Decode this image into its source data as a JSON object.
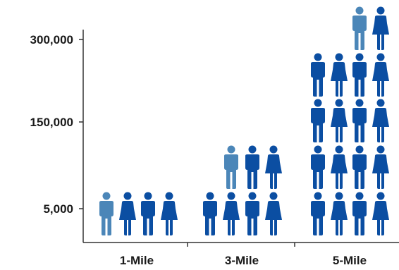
{
  "chart_data": {
    "type": "pictograph",
    "title": "",
    "xlabel": "",
    "ylabel": "",
    "categories": [
      "1-Mile",
      "3-Mile",
      "5-Mile"
    ],
    "y_tick_labels": [
      "300,000",
      "150,000",
      "5,000"
    ],
    "series": [
      {
        "values": [
          [
            1,
            3
          ],
          [
            1,
            6
          ],
          [
            1,
            4,
            4,
            4,
            4,
            1
          ]
        ]
      }
    ],
    "colors": {
      "male_highlight": "#4b86b8",
      "primary": "#0b4ea2",
      "axis": "#333333",
      "text": "#1a1a1a"
    },
    "icon_rows": [
      [
        [
          "male-light",
          "female",
          "male",
          "female"
        ]
      ],
      [
        [
          "male",
          "female",
          "male",
          "female"
        ],
        [
          "male-light",
          "male",
          "female"
        ]
      ],
      [
        [
          "male",
          "female",
          "male",
          "female"
        ],
        [
          "male",
          "female",
          "male",
          "female"
        ],
        [
          "male",
          "female",
          "male",
          "female"
        ],
        [
          "male",
          "female",
          "male",
          "female"
        ],
        [
          "male-light",
          "female"
        ]
      ]
    ]
  }
}
